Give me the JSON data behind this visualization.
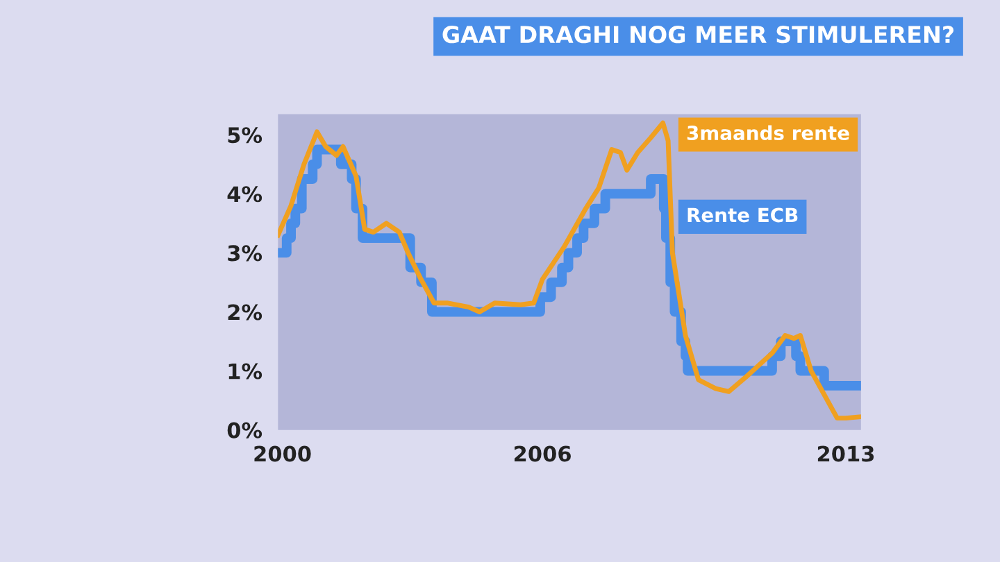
{
  "chart_data": {
    "type": "line",
    "title": "GAAT DRAGHI NOG MEER STIMULEREN?",
    "xlim": [
      1999.9,
      2013.35
    ],
    "xticks": [
      2000,
      2006,
      2013
    ],
    "ylim": [
      0,
      5.35
    ],
    "yticks": [
      {
        "value": 0,
        "label": "0%"
      },
      {
        "value": 1,
        "label": "1%"
      },
      {
        "value": 2,
        "label": "2%"
      },
      {
        "value": 3,
        "label": "3%"
      },
      {
        "value": 4,
        "label": "4%"
      },
      {
        "value": 5,
        "label": "5%"
      }
    ],
    "grid": false,
    "legend": false,
    "series": [
      {
        "name": "3maands rente",
        "color": "#f0a020",
        "x": [
          1999.9,
          2000.2,
          2000.5,
          2000.8,
          2001.0,
          2001.25,
          2001.4,
          2001.7,
          2001.9,
          2002.1,
          2002.4,
          2002.7,
          2002.9,
          2003.2,
          2003.5,
          2003.8,
          2004.3,
          2004.55,
          2004.9,
          2005.5,
          2005.8,
          2006.0,
          2006.5,
          2007.0,
          2007.3,
          2007.6,
          2007.8,
          2007.95,
          2008.2,
          2008.5,
          2008.78,
          2008.9,
          2009.0,
          2009.3,
          2009.6,
          2010.0,
          2010.3,
          2010.7,
          2011.0,
          2011.3,
          2011.6,
          2011.8,
          2011.95,
          2012.2,
          2012.5,
          2012.8,
          2013.0,
          2013.3
        ],
        "values": [
          3.3,
          3.8,
          4.5,
          5.05,
          4.8,
          4.65,
          4.8,
          4.3,
          3.4,
          3.35,
          3.5,
          3.35,
          3.0,
          2.55,
          2.15,
          2.15,
          2.08,
          2.0,
          2.15,
          2.12,
          2.15,
          2.55,
          3.1,
          3.75,
          4.1,
          4.75,
          4.7,
          4.4,
          4.7,
          4.95,
          5.2,
          4.9,
          3.0,
          1.6,
          0.85,
          0.7,
          0.65,
          0.9,
          1.1,
          1.3,
          1.6,
          1.55,
          1.6,
          1.0,
          0.6,
          0.2,
          0.2,
          0.22
        ]
      },
      {
        "name": "Rente ECB",
        "color": "#4a8ee8",
        "type": "step",
        "x": [
          1999.9,
          2000.1,
          2000.2,
          2000.3,
          2000.45,
          2000.7,
          2000.8,
          2001.35,
          2001.6,
          2001.7,
          2001.85,
          2002.95,
          2003.2,
          2003.45,
          2005.95,
          2006.2,
          2006.45,
          2006.6,
          2006.8,
          2006.95,
          2007.2,
          2007.45,
          2008.5,
          2008.8,
          2008.85,
          2008.95,
          2009.05,
          2009.2,
          2009.3,
          2009.35,
          2011.3,
          2011.5,
          2011.85,
          2011.95,
          2012.5,
          2013.3
        ],
        "values": [
          3.0,
          3.25,
          3.5,
          3.75,
          4.25,
          4.5,
          4.75,
          4.5,
          4.25,
          3.75,
          3.25,
          2.75,
          2.5,
          2.0,
          2.25,
          2.5,
          2.75,
          3.0,
          3.25,
          3.5,
          3.75,
          4.0,
          4.25,
          3.75,
          3.25,
          2.5,
          2.0,
          1.5,
          1.25,
          1.0,
          1.25,
          1.5,
          1.25,
          1.0,
          0.75,
          0.75
        ]
      }
    ]
  }
}
